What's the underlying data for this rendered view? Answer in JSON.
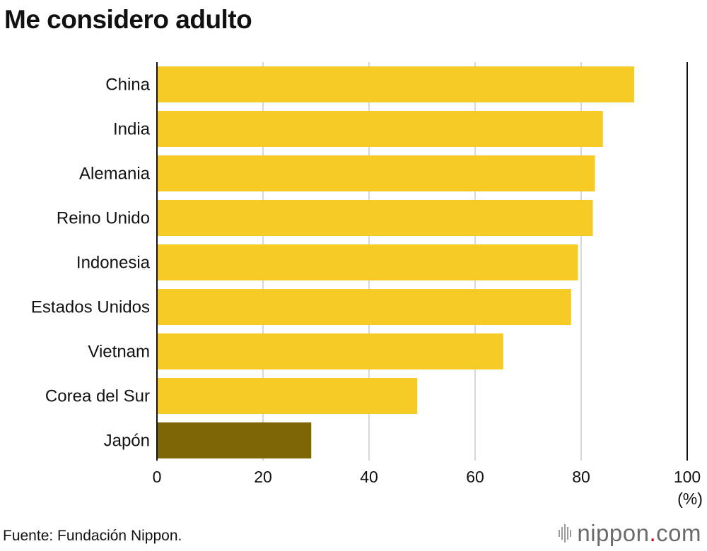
{
  "title": "Me considero adulto",
  "source": "Fuente: Fundación Nippon.",
  "brand": {
    "name": "nippon",
    "dot": ".",
    "tld": "com"
  },
  "colors": {
    "bar": "#F7CB26",
    "highlight": "#7E6506",
    "grid": "#cccccc",
    "axis": "#111111"
  },
  "chart_data": {
    "type": "bar",
    "orientation": "horizontal",
    "title": "Me considero adulto",
    "categories": [
      "China",
      "India",
      "Alemania",
      "Reino Unido",
      "Indonesia",
      "Estados Unidos",
      "Vietnam",
      "Corea del Sur",
      "Japón"
    ],
    "values": [
      90.0,
      84.1,
      82.6,
      82.2,
      79.4,
      78.1,
      65.3,
      49.1,
      29.1
    ],
    "highlight": "Japón",
    "xlim": [
      0,
      100
    ],
    "xticks": [
      0,
      20,
      40,
      60,
      80,
      100
    ],
    "xunit": "(%)",
    "xlabel": "",
    "ylabel": "",
    "grid": true,
    "legend": "none"
  }
}
